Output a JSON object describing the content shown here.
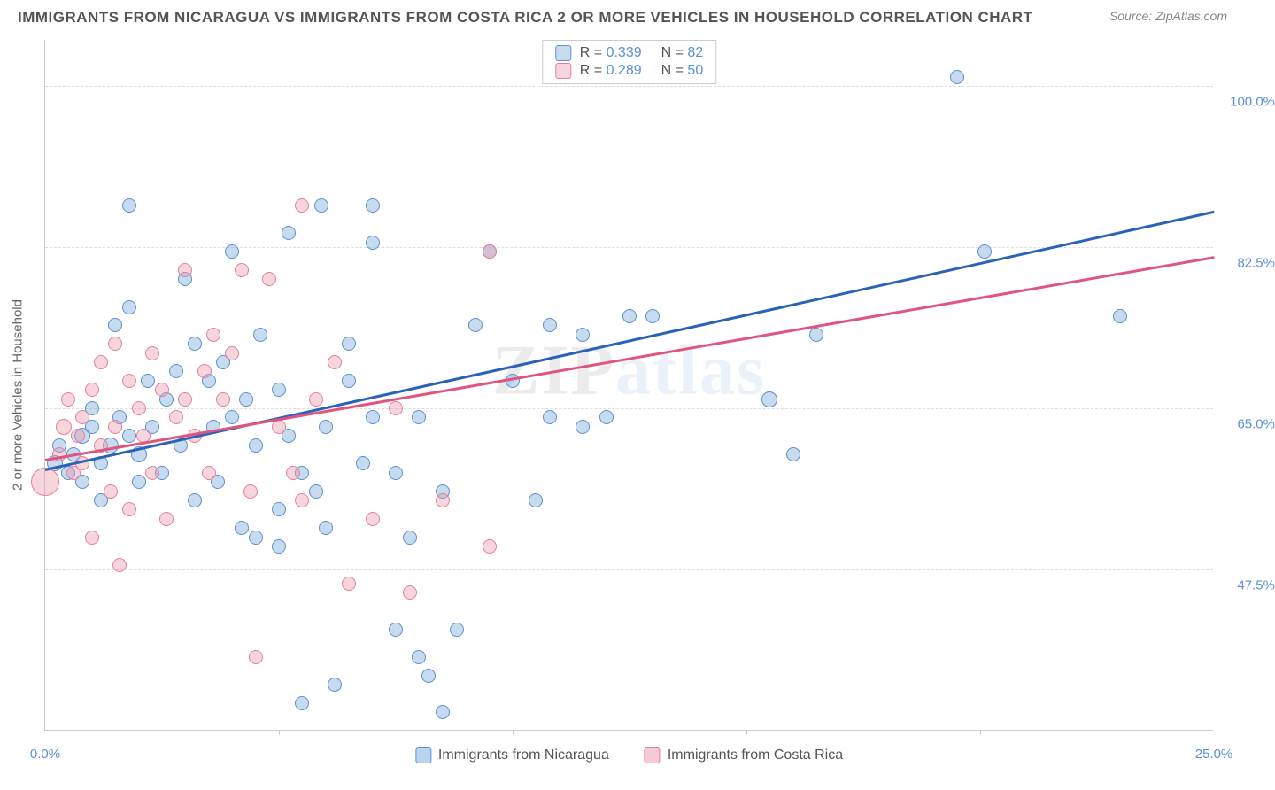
{
  "title": "IMMIGRANTS FROM NICARAGUA VS IMMIGRANTS FROM COSTA RICA 2 OR MORE VEHICLES IN HOUSEHOLD CORRELATION CHART",
  "source": "Source: ZipAtlas.com",
  "y_axis_label": "2 or more Vehicles in Household",
  "watermark_a": "ZIP",
  "watermark_b": "atlas",
  "x_range": [
    0,
    25
  ],
  "y_range": [
    30,
    105
  ],
  "y_ticks": [
    {
      "v": 47.5,
      "label": "47.5%"
    },
    {
      "v": 65.0,
      "label": "65.0%"
    },
    {
      "v": 82.5,
      "label": "82.5%"
    },
    {
      "v": 100.0,
      "label": "100.0%"
    }
  ],
  "x_ticks_minor": [
    5,
    10,
    15,
    20
  ],
  "x_tick_labels": [
    {
      "v": 0,
      "label": "0.0%"
    },
    {
      "v": 25,
      "label": "25.0%"
    }
  ],
  "series": [
    {
      "name": "Immigrants from Nicaragua",
      "fill": "rgba(130,175,220,0.45)",
      "stroke": "#5b8fd6",
      "trend_color": "#2a62b8",
      "r_value": "0.339",
      "n_value": "82",
      "trend": {
        "x1": 0,
        "y1": 58.5,
        "x2": 25,
        "y2": 86.5
      },
      "points": [
        [
          0.2,
          59,
          9
        ],
        [
          0.3,
          61,
          8
        ],
        [
          0.5,
          58,
          8
        ],
        [
          0.6,
          60,
          8
        ],
        [
          0.8,
          62,
          9
        ],
        [
          0.8,
          57,
          8
        ],
        [
          1.0,
          63,
          8
        ],
        [
          1.0,
          65,
          8
        ],
        [
          1.2,
          59,
          8
        ],
        [
          1.2,
          55,
          8
        ],
        [
          1.4,
          61,
          9
        ],
        [
          1.5,
          74,
          8
        ],
        [
          1.6,
          64,
          8
        ],
        [
          1.8,
          62,
          8
        ],
        [
          1.8,
          87,
          8
        ],
        [
          2.0,
          57,
          8
        ],
        [
          2.0,
          60,
          9
        ],
        [
          2.2,
          68,
          8
        ],
        [
          2.3,
          63,
          8
        ],
        [
          2.5,
          58,
          8
        ],
        [
          2.6,
          66,
          8
        ],
        [
          2.8,
          69,
          8
        ],
        [
          2.9,
          61,
          8
        ],
        [
          3.0,
          79,
          8
        ],
        [
          3.2,
          72,
          8
        ],
        [
          3.2,
          55,
          8
        ],
        [
          3.5,
          68,
          8
        ],
        [
          3.6,
          63,
          8
        ],
        [
          3.7,
          57,
          8
        ],
        [
          3.8,
          70,
          8
        ],
        [
          4.0,
          64,
          8
        ],
        [
          4.0,
          82,
          8
        ],
        [
          4.2,
          52,
          8
        ],
        [
          4.3,
          66,
          8
        ],
        [
          4.5,
          51,
          8
        ],
        [
          4.5,
          61,
          8
        ],
        [
          4.6,
          73,
          8
        ],
        [
          5.0,
          67,
          8
        ],
        [
          5.0,
          54,
          8
        ],
        [
          5.0,
          50,
          8
        ],
        [
          5.2,
          84,
          8
        ],
        [
          5.2,
          62,
          8
        ],
        [
          5.5,
          33,
          8
        ],
        [
          5.5,
          58,
          8
        ],
        [
          5.8,
          56,
          8
        ],
        [
          5.9,
          87,
          8
        ],
        [
          6.0,
          52,
          8
        ],
        [
          6.0,
          63,
          8
        ],
        [
          6.2,
          35,
          8
        ],
        [
          6.5,
          68,
          8
        ],
        [
          6.5,
          72,
          8
        ],
        [
          6.8,
          59,
          8
        ],
        [
          7.0,
          83,
          8
        ],
        [
          7.0,
          87,
          8
        ],
        [
          7.0,
          64,
          8
        ],
        [
          7.5,
          58,
          8
        ],
        [
          7.5,
          41,
          8
        ],
        [
          7.8,
          51,
          8
        ],
        [
          8.0,
          38,
          8
        ],
        [
          8.0,
          64,
          8
        ],
        [
          8.2,
          36,
          8
        ],
        [
          8.5,
          56,
          8
        ],
        [
          8.5,
          32,
          8
        ],
        [
          8.8,
          41,
          8
        ],
        [
          9.2,
          74,
          8
        ],
        [
          9.5,
          82,
          8
        ],
        [
          10.0,
          68,
          8
        ],
        [
          10.5,
          55,
          8
        ],
        [
          10.8,
          64,
          8
        ],
        [
          10.8,
          74,
          8
        ],
        [
          11.5,
          63,
          8
        ],
        [
          11.5,
          73,
          8
        ],
        [
          12.0,
          64,
          8
        ],
        [
          12.5,
          75,
          8
        ],
        [
          13.0,
          75,
          8
        ],
        [
          15.5,
          66,
          9
        ],
        [
          16.0,
          60,
          8
        ],
        [
          16.5,
          73,
          8
        ],
        [
          19.5,
          101,
          8
        ],
        [
          20.1,
          82,
          8
        ],
        [
          23.0,
          75,
          8
        ],
        [
          1.8,
          76,
          8
        ]
      ]
    },
    {
      "name": "Immigrants from Costa Rica",
      "fill": "rgba(235,150,170,0.40)",
      "stroke": "#e57f9a",
      "trend_color": "#e05580",
      "r_value": "0.289",
      "n_value": "50",
      "trend": {
        "x1": 0,
        "y1": 59.5,
        "x2": 25,
        "y2": 81.5
      },
      "points": [
        [
          0.0,
          57,
          16
        ],
        [
          0.3,
          60,
          8
        ],
        [
          0.4,
          63,
          9
        ],
        [
          0.5,
          66,
          8
        ],
        [
          0.6,
          58,
          8
        ],
        [
          0.7,
          62,
          8
        ],
        [
          0.8,
          59,
          8
        ],
        [
          0.8,
          64,
          8
        ],
        [
          1.0,
          51,
          8
        ],
        [
          1.0,
          67,
          8
        ],
        [
          1.2,
          70,
          8
        ],
        [
          1.2,
          61,
          8
        ],
        [
          1.4,
          56,
          8
        ],
        [
          1.5,
          63,
          8
        ],
        [
          1.5,
          72,
          8
        ],
        [
          1.6,
          48,
          8
        ],
        [
          1.8,
          54,
          8
        ],
        [
          1.8,
          68,
          8
        ],
        [
          2.0,
          65,
          8
        ],
        [
          2.1,
          62,
          8
        ],
        [
          2.3,
          58,
          8
        ],
        [
          2.3,
          71,
          8
        ],
        [
          2.5,
          67,
          8
        ],
        [
          2.6,
          53,
          8
        ],
        [
          2.8,
          64,
          8
        ],
        [
          3.0,
          66,
          8
        ],
        [
          3.0,
          80,
          8
        ],
        [
          3.2,
          62,
          8
        ],
        [
          3.4,
          69,
          8
        ],
        [
          3.5,
          58,
          8
        ],
        [
          3.6,
          73,
          8
        ],
        [
          3.8,
          66,
          8
        ],
        [
          4.0,
          71,
          8
        ],
        [
          4.2,
          80,
          8
        ],
        [
          4.4,
          56,
          8
        ],
        [
          4.5,
          38,
          8
        ],
        [
          4.8,
          79,
          8
        ],
        [
          5.0,
          63,
          8
        ],
        [
          5.3,
          58,
          8
        ],
        [
          5.5,
          55,
          8
        ],
        [
          5.8,
          66,
          8
        ],
        [
          6.2,
          70,
          8
        ],
        [
          6.5,
          46,
          8
        ],
        [
          7.0,
          53,
          8
        ],
        [
          7.5,
          65,
          8
        ],
        [
          7.8,
          45,
          8
        ],
        [
          8.5,
          55,
          8
        ],
        [
          9.5,
          50,
          8
        ],
        [
          9.5,
          82,
          8
        ],
        [
          5.5,
          87,
          8
        ]
      ]
    }
  ],
  "bottom_legend": [
    {
      "label": "Immigrants from Nicaragua",
      "fill": "rgba(130,175,220,0.55)",
      "stroke": "#5b8fd6"
    },
    {
      "label": "Immigrants from Costa Rica",
      "fill": "rgba(235,150,170,0.50)",
      "stroke": "#e57f9a"
    }
  ]
}
